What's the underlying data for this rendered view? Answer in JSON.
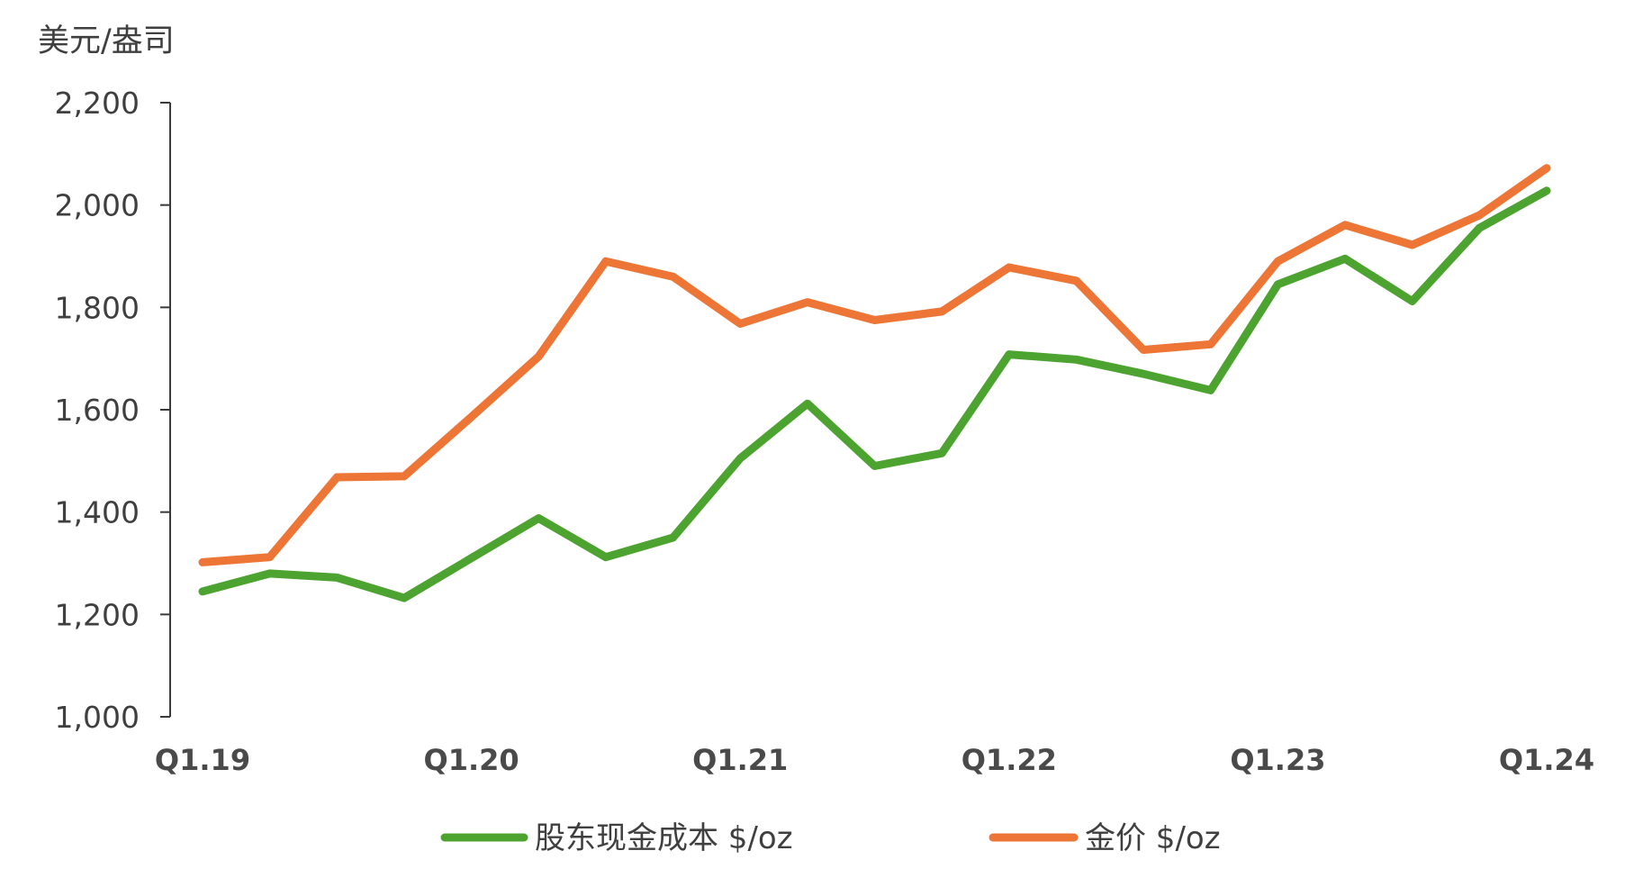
{
  "chart_data": {
    "type": "line",
    "unit_label": "美元/盎司",
    "x": [
      "Q1.19",
      "Q2.19",
      "Q3.19",
      "Q4.19",
      "Q1.20",
      "Q2.20",
      "Q3.20",
      "Q4.20",
      "Q1.21",
      "Q2.21",
      "Q3.21",
      "Q4.21",
      "Q1.22",
      "Q2.22",
      "Q3.22",
      "Q4.22",
      "Q1.23",
      "Q2.23",
      "Q3.23",
      "Q4.23",
      "Q1.24"
    ],
    "x_tick_labels": [
      "Q1.19",
      "Q1.20",
      "Q1.21",
      "Q1.22",
      "Q1.23",
      "Q1.24"
    ],
    "y_tick_labels": [
      "1,000",
      "1,200",
      "1,400",
      "1,600",
      "1,800",
      "2,000",
      "2,200"
    ],
    "y_ticks": [
      1000,
      1200,
      1400,
      1600,
      1800,
      2000,
      2200
    ],
    "ylim": [
      1000,
      2200
    ],
    "grid": false,
    "legend_position": "bottom",
    "series": [
      {
        "name": "股东现金成本 $/oz",
        "color": "#4ca32f",
        "values": [
          1245,
          1280,
          1272,
          1232,
          1310,
          1388,
          1312,
          1350,
          1505,
          1612,
          1490,
          1515,
          1708,
          1698,
          1670,
          1638,
          1845,
          1895,
          1812,
          1955,
          2028
        ]
      },
      {
        "name": "金价 $/oz",
        "color": "#ed7535",
        "values": [
          1302,
          1312,
          1468,
          1470,
          1586,
          1704,
          1890,
          1860,
          1768,
          1810,
          1775,
          1792,
          1878,
          1852,
          1717,
          1728,
          1890,
          1961,
          1922,
          1980,
          2072
        ]
      }
    ]
  }
}
